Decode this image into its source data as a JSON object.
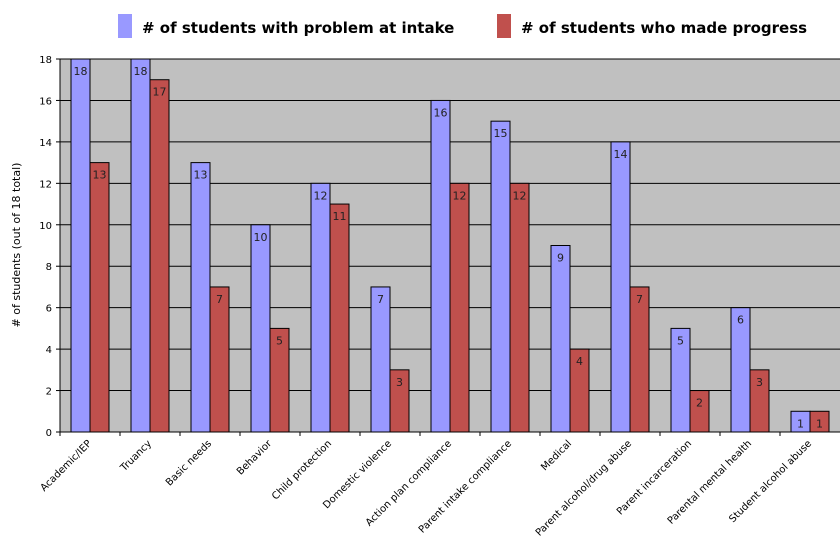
{
  "chart_data": {
    "type": "bar",
    "title": "",
    "xlabel": "",
    "ylabel": "# of students (out of 18 total)",
    "ylim": [
      0,
      18
    ],
    "yticks": [
      0,
      2,
      4,
      6,
      8,
      10,
      12,
      14,
      16,
      18
    ],
    "grid": true,
    "legend_position": "top",
    "categories": [
      "Academic/IEP",
      "Truancy",
      "Basic needs",
      "Behavior",
      "Child protection",
      "Domestic violence",
      "Action plan compliance",
      "Parent intake compliance",
      "Medical",
      "Parent alcohol/drug abuse",
      "Parent incarceration",
      "Parental mental health",
      "Student alcohol abuse"
    ],
    "series": [
      {
        "name": "# of students with problem at intake",
        "color": "#9999ff",
        "values": [
          18,
          18,
          13,
          10,
          12,
          7,
          16,
          15,
          9,
          14,
          5,
          6,
          1
        ]
      },
      {
        "name": "# of students who made progress",
        "color": "#c0504d",
        "values": [
          13,
          17,
          7,
          5,
          11,
          3,
          12,
          12,
          4,
          7,
          2,
          3,
          1
        ]
      }
    ],
    "plot_background": "#c0c0c0"
  }
}
